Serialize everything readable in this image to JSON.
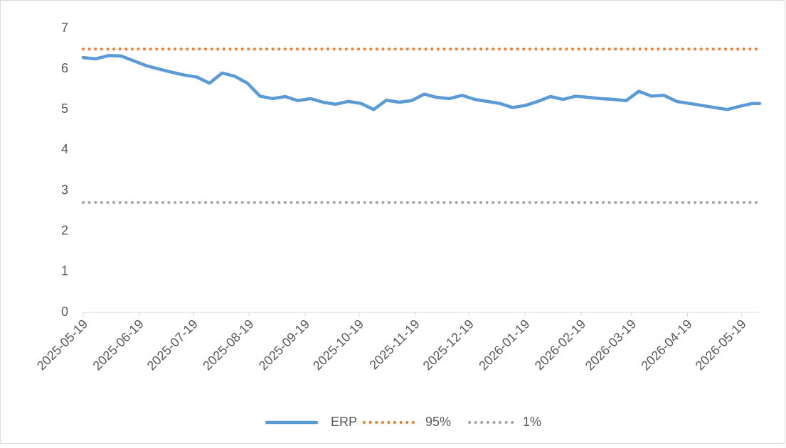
{
  "chart_data": {
    "type": "line",
    "x": [
      "2025-05-19",
      "2025-05-26",
      "2025-06-02",
      "2025-06-09",
      "2025-06-16",
      "2025-06-23",
      "2025-06-30",
      "2025-07-07",
      "2025-07-14",
      "2025-07-21",
      "2025-07-28",
      "2025-08-04",
      "2025-08-11",
      "2025-08-18",
      "2025-08-25",
      "2025-09-01",
      "2025-09-08",
      "2025-09-15",
      "2025-09-22",
      "2025-09-29",
      "2025-10-06",
      "2025-10-13",
      "2025-10-20",
      "2025-10-27",
      "2025-11-03",
      "2025-11-10",
      "2025-11-17",
      "2025-11-24",
      "2025-12-01",
      "2025-12-08",
      "2025-12-15",
      "2025-12-22",
      "2025-12-29",
      "2026-01-05",
      "2026-01-12",
      "2026-01-19",
      "2026-01-26",
      "2026-02-02",
      "2026-02-09",
      "2026-02-16",
      "2026-02-23",
      "2026-03-02",
      "2026-03-09",
      "2026-03-16",
      "2026-03-23",
      "2026-03-30",
      "2026-04-06",
      "2026-04-13",
      "2026-04-20",
      "2026-04-27",
      "2026-05-04",
      "2026-05-11",
      "2026-05-18",
      "2026-05-25",
      "2026-05-29"
    ],
    "series": [
      {
        "name": "ERP",
        "color": "#5b9bd5",
        "style": "solid",
        "values": [
          6.28,
          6.25,
          6.33,
          6.32,
          6.2,
          6.08,
          6.0,
          5.92,
          5.85,
          5.8,
          5.65,
          5.9,
          5.82,
          5.65,
          5.33,
          5.27,
          5.32,
          5.22,
          5.27,
          5.18,
          5.13,
          5.2,
          5.15,
          5.0,
          5.23,
          5.18,
          5.22,
          5.38,
          5.3,
          5.27,
          5.35,
          5.25,
          5.2,
          5.15,
          5.05,
          5.1,
          5.2,
          5.32,
          5.25,
          5.33,
          5.3,
          5.27,
          5.25,
          5.22,
          5.45,
          5.33,
          5.35,
          5.2,
          5.15,
          5.1,
          5.05,
          5.0,
          5.08,
          5.15,
          5.15
        ]
      },
      {
        "name": "95%",
        "color": "#ed7d31",
        "style": "dotted",
        "values": [
          6.49,
          6.49,
          6.49,
          6.49,
          6.49,
          6.49,
          6.49,
          6.49,
          6.49,
          6.49,
          6.49,
          6.49,
          6.49,
          6.49,
          6.49,
          6.49,
          6.49,
          6.49,
          6.49,
          6.49,
          6.49,
          6.49,
          6.49,
          6.49,
          6.49,
          6.49,
          6.49,
          6.49,
          6.49,
          6.49,
          6.49,
          6.49,
          6.49,
          6.49,
          6.49,
          6.49,
          6.49,
          6.49,
          6.49,
          6.49,
          6.49,
          6.49,
          6.49,
          6.49,
          6.49,
          6.49,
          6.49,
          6.49,
          6.49,
          6.49,
          6.49,
          6.49,
          6.49,
          6.49,
          6.49
        ]
      },
      {
        "name": "1%",
        "color": "#a5a5a5",
        "style": "dotted",
        "values": [
          2.71,
          2.71,
          2.71,
          2.71,
          2.71,
          2.71,
          2.71,
          2.71,
          2.71,
          2.71,
          2.71,
          2.71,
          2.71,
          2.71,
          2.71,
          2.71,
          2.71,
          2.71,
          2.71,
          2.71,
          2.71,
          2.71,
          2.71,
          2.71,
          2.71,
          2.71,
          2.71,
          2.71,
          2.71,
          2.71,
          2.71,
          2.71,
          2.71,
          2.71,
          2.71,
          2.71,
          2.71,
          2.71,
          2.71,
          2.71,
          2.71,
          2.71,
          2.71,
          2.71,
          2.71,
          2.71,
          2.71,
          2.71,
          2.71,
          2.71,
          2.71,
          2.71,
          2.71,
          2.71,
          2.71
        ]
      }
    ],
    "xlim": [
      "2025-05-19",
      "2026-05-29"
    ],
    "xticks": [
      "2025-05-19",
      "2025-06-19",
      "2025-07-19",
      "2025-08-19",
      "2025-09-19",
      "2025-10-19",
      "2025-11-19",
      "2025-12-19",
      "2026-01-19",
      "2026-02-19",
      "2026-03-19",
      "2026-04-19",
      "2026-05-19"
    ],
    "ylim": [
      0,
      7
    ],
    "yticks": [
      0,
      1,
      2,
      3,
      4,
      5,
      6,
      7
    ],
    "grid": false,
    "legend": "bottom"
  }
}
